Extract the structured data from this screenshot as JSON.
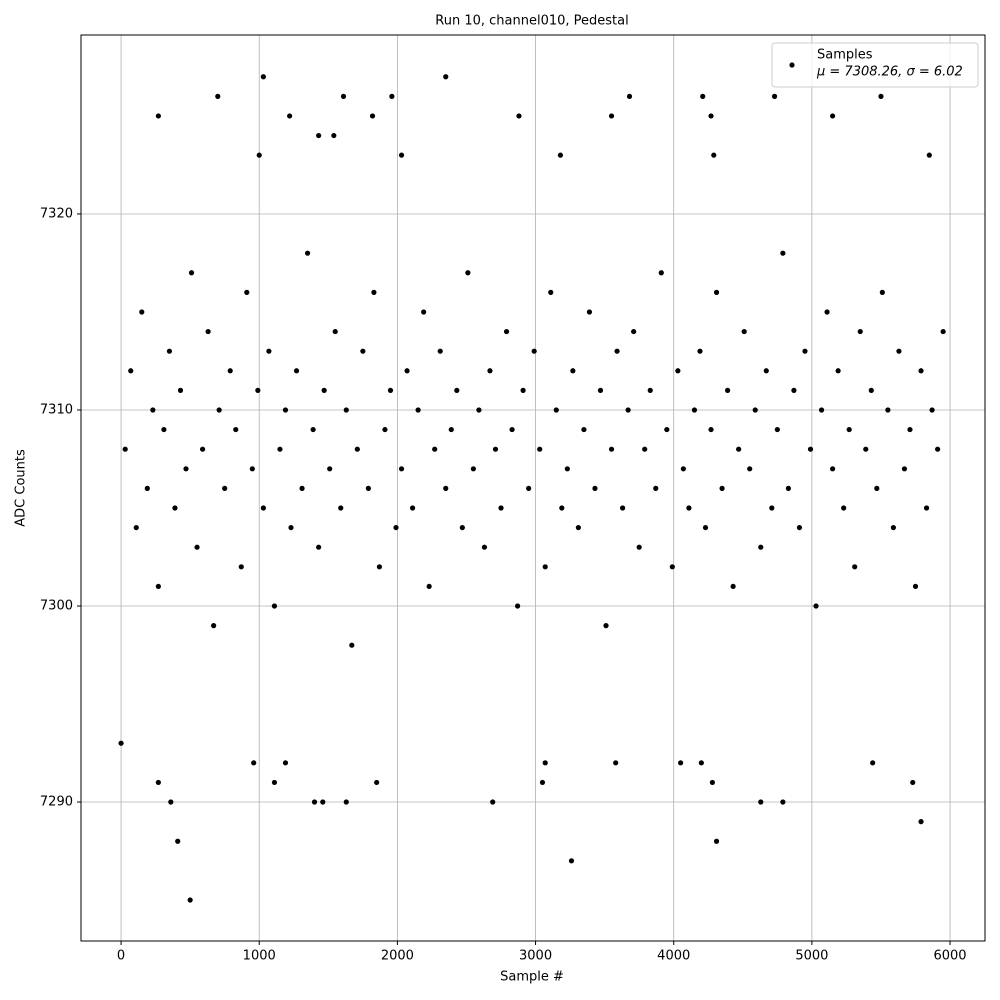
{
  "chart_data": {
    "type": "scatter",
    "title": "Run 10, channel010, Pedestal",
    "xlabel": "Sample #",
    "ylabel": "ADC Counts",
    "xlim": [
      -290,
      6253
    ],
    "ylim": [
      7282.91,
      7329.13
    ],
    "xticks": [
      0,
      1000,
      2000,
      3000,
      4000,
      5000,
      6000
    ],
    "yticks": [
      7290,
      7300,
      7310,
      7320
    ],
    "grid": true,
    "legend": "upper right",
    "annotation": "μ = 7308.26, σ = 6.02",
    "series": [
      {
        "name": "Samples",
        "color": "#000000",
        "x": [
          30,
          70,
          110,
          150,
          190,
          230,
          270,
          310,
          350,
          390,
          430,
          470,
          510,
          550,
          590,
          630,
          670,
          710,
          750,
          790,
          830,
          870,
          910,
          950,
          990,
          1030,
          1070,
          1110,
          1150,
          1190,
          1230,
          1270,
          1310,
          1350,
          1390,
          1430,
          1470,
          1510,
          1550,
          1590,
          1630,
          1670,
          1710,
          1750,
          1790,
          1830,
          1870,
          1910,
          1950,
          1990,
          2030,
          2070,
          2110,
          2150,
          2190,
          2230,
          2270,
          2310,
          2350,
          2390,
          2430,
          2470,
          2510,
          2550,
          2590,
          2630,
          2670,
          2710,
          2750,
          2790,
          2830,
          2870,
          2910,
          2950,
          2990,
          3030,
          3070,
          3110,
          3150,
          3190,
          3230,
          3270,
          3310,
          3350,
          3390,
          3430,
          3470,
          3510,
          3550,
          3590,
          3630,
          3670,
          3710,
          3750,
          3790,
          3830,
          3870,
          3910,
          3950,
          3990,
          4030,
          4070,
          4110,
          4150,
          4190,
          4230,
          4270,
          4310,
          4350,
          4390,
          4430,
          4470,
          4510,
          4550,
          4590,
          4630,
          4670,
          4710,
          4750,
          4790,
          4830,
          4870,
          4910,
          4950,
          4990,
          5030,
          5070,
          5110,
          5150,
          5190,
          5230,
          5270,
          5310,
          5350,
          5390,
          5430,
          5470,
          5510,
          5550,
          5590,
          5630,
          5670,
          5710,
          5750,
          5790,
          5830,
          5870,
          5910,
          5950,
          0,
          500,
          410,
          1030,
          2350,
          3260,
          4310,
          5790,
          700,
          1610,
          1960,
          3680,
          4210,
          4730,
          5500,
          360,
          1400,
          1460,
          1630,
          2690,
          4630,
          4790,
          270,
          1110,
          1850,
          3050,
          4280,
          5730,
          270,
          1220,
          1820,
          2880,
          3550,
          4270,
          5150,
          960,
          1190,
          3070,
          3580,
          4050,
          4200,
          5440,
          1430,
          1540,
          1000,
          2030,
          3180,
          4290,
          5850
        ],
        "values": [
          7308,
          7312,
          7304,
          7315,
          7306,
          7310,
          7301,
          7309,
          7313,
          7305,
          7311,
          7307,
          7317,
          7303,
          7308,
          7314,
          7299,
          7310,
          7306,
          7312,
          7309,
          7302,
          7316,
          7307,
          7311,
          7305,
          7313,
          7300,
          7308,
          7310,
          7304,
          7312,
          7306,
          7318,
          7309,
          7303,
          7311,
          7307,
          7314,
          7305,
          7310,
          7298,
          7308,
          7313,
          7306,
          7316,
          7302,
          7309,
          7311,
          7304,
          7307,
          7312,
          7305,
          7310,
          7315,
          7301,
          7308,
          7313,
          7306,
          7309,
          7311,
          7304,
          7317,
          7307,
          7310,
          7303,
          7312,
          7308,
          7305,
          7314,
          7309,
          7300,
          7311,
          7306,
          7313,
          7308,
          7302,
          7316,
          7310,
          7305,
          7307,
          7312,
          7304,
          7309,
          7315,
          7306,
          7311,
          7299,
          7308,
          7313,
          7305,
          7310,
          7314,
          7303,
          7308,
          7311,
          7306,
          7317,
          7309,
          7302,
          7312,
          7307,
          7305,
          7310,
          7313,
          7304,
          7309,
          7316,
          7306,
          7311,
          7301,
          7308,
          7314,
          7307,
          7310,
          7303,
          7312,
          7305,
          7309,
          7318,
          7306,
          7311,
          7304,
          7313,
          7308,
          7300,
          7310,
          7315,
          7307,
          7312,
          7305,
          7309,
          7302,
          7314,
          7308,
          7311,
          7306,
          7316,
          7310,
          7304,
          7313,
          7307,
          7309,
          7301,
          7312,
          7305,
          7310,
          7308,
          7314,
          7293,
          7285,
          7288,
          7327,
          7327,
          7287,
          7288,
          7289,
          7326,
          7326,
          7326,
          7326,
          7326,
          7326,
          7326,
          7290,
          7290,
          7290,
          7290,
          7290,
          7290,
          7290,
          7291,
          7291,
          7291,
          7291,
          7291,
          7291,
          7325,
          7325,
          7325,
          7325,
          7325,
          7325,
          7325,
          7292,
          7292,
          7292,
          7292,
          7292,
          7292,
          7292,
          7324,
          7324,
          7323,
          7323,
          7323,
          7323,
          7323
        ]
      }
    ]
  }
}
